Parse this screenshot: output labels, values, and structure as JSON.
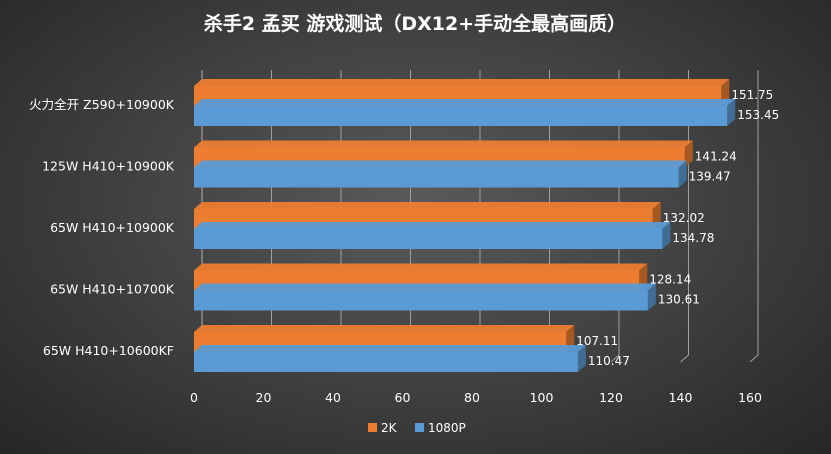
{
  "chart_data": {
    "type": "bar",
    "orientation": "horizontal",
    "style": "3d",
    "title": "杀手2 孟买 游戏测试（DX12+手动全最高画质）",
    "categories": [
      "火力全开 Z590+10900K",
      "125W H410+10900K",
      "65W H410+10900K",
      "65W H410+10700K",
      "65W H410+10600KF"
    ],
    "series": [
      {
        "name": "2K",
        "color": "#ed7d31",
        "values": [
          151.75,
          141.24,
          132.02,
          128.14,
          107.11
        ]
      },
      {
        "name": "1080P",
        "color": "#5b9bd5",
        "values": [
          153.45,
          139.47,
          134.78,
          130.61,
          110.47
        ]
      }
    ],
    "xlim": [
      0,
      160
    ],
    "xticks": [
      0,
      20,
      40,
      60,
      80,
      100,
      120,
      140,
      160
    ],
    "xlabel": "",
    "ylabel": "",
    "grid": true,
    "legend": "bottom"
  }
}
